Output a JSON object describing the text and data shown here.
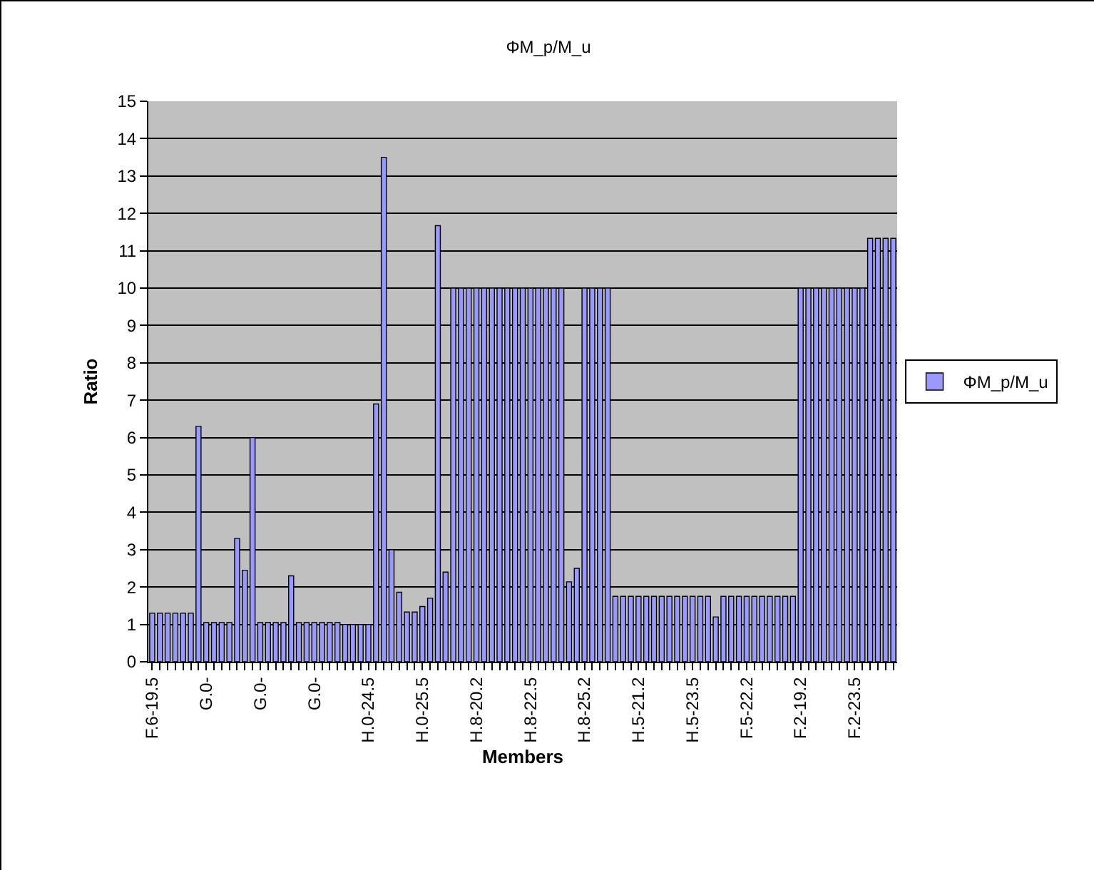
{
  "chart_data": {
    "type": "bar",
    "title": "ΦM_p/M_u",
    "xlabel": "Members",
    "ylabel": "Ratio",
    "categories": [
      "F.6-19.5",
      null,
      null,
      null,
      null,
      null,
      null,
      "G.0-",
      null,
      null,
      null,
      null,
      null,
      null,
      "G.0-",
      null,
      null,
      null,
      null,
      null,
      null,
      "G.0-",
      null,
      null,
      null,
      null,
      null,
      null,
      "H.0-24.5",
      null,
      null,
      null,
      null,
      null,
      null,
      "H.0-25.5",
      null,
      null,
      null,
      null,
      null,
      null,
      "H.8-20.2",
      null,
      null,
      null,
      null,
      null,
      null,
      "H.8-22.5",
      null,
      null,
      null,
      null,
      null,
      null,
      "H.8-25.2",
      null,
      null,
      null,
      null,
      null,
      null,
      "H.5-21.2",
      null,
      null,
      null,
      null,
      null,
      null,
      "H.5-23.5",
      null,
      null,
      null,
      null,
      null,
      null,
      "F.5-22.2",
      null,
      null,
      null,
      null,
      null,
      null,
      "F.2-19.2",
      null,
      null,
      null,
      null,
      null,
      null,
      "F.2-23.5",
      null,
      null,
      null,
      null,
      null
    ],
    "series": [
      {
        "name": "ΦM_p/M_u",
        "color": "#9999ff",
        "values": [
          1.3,
          1.3,
          1.3,
          1.3,
          1.3,
          1.3,
          6.3,
          1.05,
          1.05,
          1.05,
          1.05,
          3.3,
          2.45,
          6.0,
          1.05,
          1.05,
          1.05,
          1.05,
          2.3,
          1.05,
          1.05,
          1.05,
          1.05,
          1.05,
          1.05,
          1.0,
          1.0,
          1.0,
          1.0,
          6.9,
          13.5,
          3.0,
          1.86,
          1.33,
          1.33,
          1.48,
          1.7,
          11.67,
          2.4,
          10,
          10,
          10,
          10,
          10,
          10,
          10,
          10,
          10,
          10,
          10,
          10,
          10,
          10,
          10,
          2.14,
          2.5,
          10,
          10,
          10,
          10,
          1.75,
          1.75,
          1.75,
          1.75,
          1.75,
          1.75,
          1.75,
          1.75,
          1.75,
          1.75,
          1.75,
          1.75,
          1.75,
          1.2,
          1.75,
          1.75,
          1.75,
          1.75,
          1.75,
          1.75,
          1.75,
          1.75,
          1.75,
          1.75,
          10,
          10,
          10,
          10,
          10,
          10,
          10,
          10,
          10,
          11.33,
          11.33,
          11.33,
          11.33
        ]
      }
    ],
    "ylim": [
      0,
      15
    ],
    "yticks": [
      0,
      1,
      2,
      3,
      4,
      5,
      6,
      7,
      8,
      9,
      10,
      11,
      12,
      13,
      14,
      15
    ],
    "grid": "y",
    "legend": "right"
  }
}
